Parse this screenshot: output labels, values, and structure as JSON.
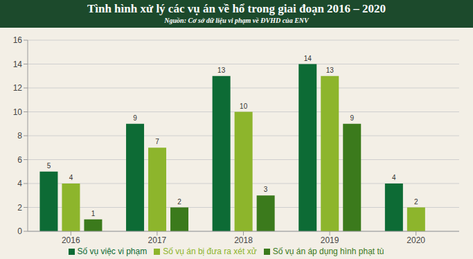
{
  "chart_data": {
    "type": "bar",
    "title": "Tình hình xử lý các vụ án về hổ trong giai đoạn 2016 – 2020",
    "subtitle": "Nguồn: Cơ sở dữ liệu vi phạm về ĐVHD của ENV",
    "categories": [
      "2016",
      "2017",
      "2018",
      "2019",
      "2020"
    ],
    "series": [
      {
        "name": "Số vụ việc vi phạm",
        "color": "#0d6b35",
        "values": [
          5,
          9,
          13,
          14,
          4
        ]
      },
      {
        "name": "Số vụ án bị đưa ra xét xử",
        "color": "#8db52c",
        "values": [
          4,
          7,
          10,
          13,
          2
        ]
      },
      {
        "name": "Số vụ án áp dụng hình phạt tù",
        "color": "#3b7a1c",
        "values": [
          1,
          2,
          3,
          9,
          0
        ]
      }
    ],
    "ylim": [
      0,
      16
    ],
    "yticks": [
      0,
      2,
      4,
      6,
      8,
      10,
      12,
      14,
      16
    ],
    "grid": true,
    "legend": "bottom",
    "data_labels": true
  }
}
